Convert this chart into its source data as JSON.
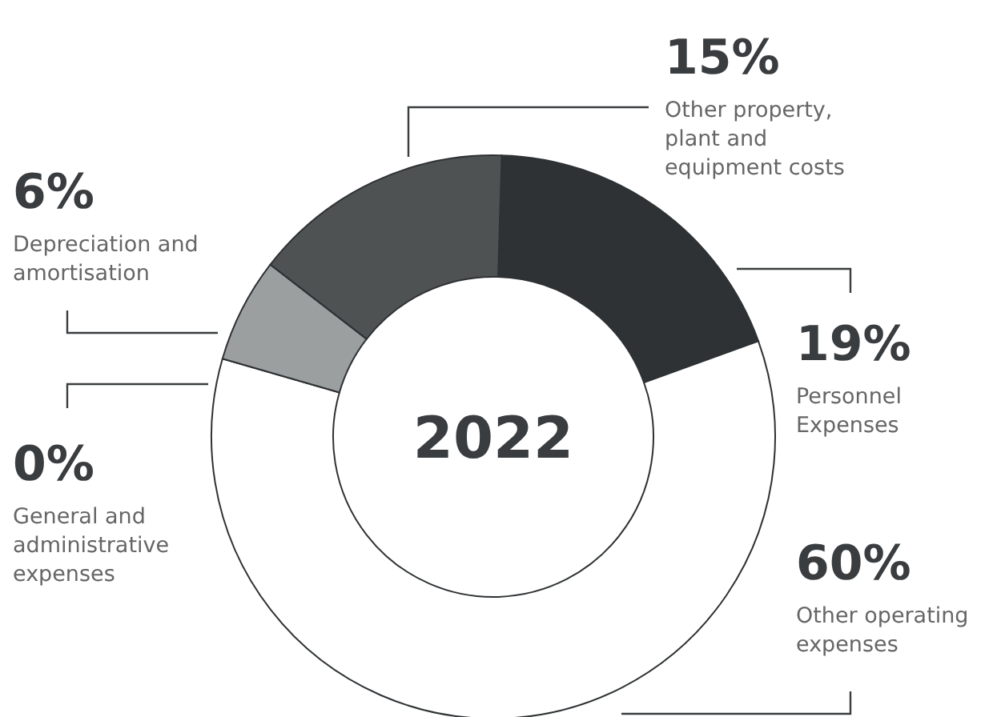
{
  "chart_data": {
    "type": "donut",
    "title": "2022",
    "categories": [
      "Personnel Expenses",
      "Other operating expenses",
      "General and administrative expenses",
      "Depreciation and amortisation",
      "Other property, plant and equipment costs"
    ],
    "values": [
      19,
      60,
      0,
      6,
      15
    ],
    "colors": [
      "#2e3234",
      "#ffffff",
      "#8e9192",
      "#9c9fa0",
      "#4f5253"
    ],
    "value_labels": [
      "19%",
      "60%",
      "0%",
      "6%",
      "15%"
    ]
  }
}
